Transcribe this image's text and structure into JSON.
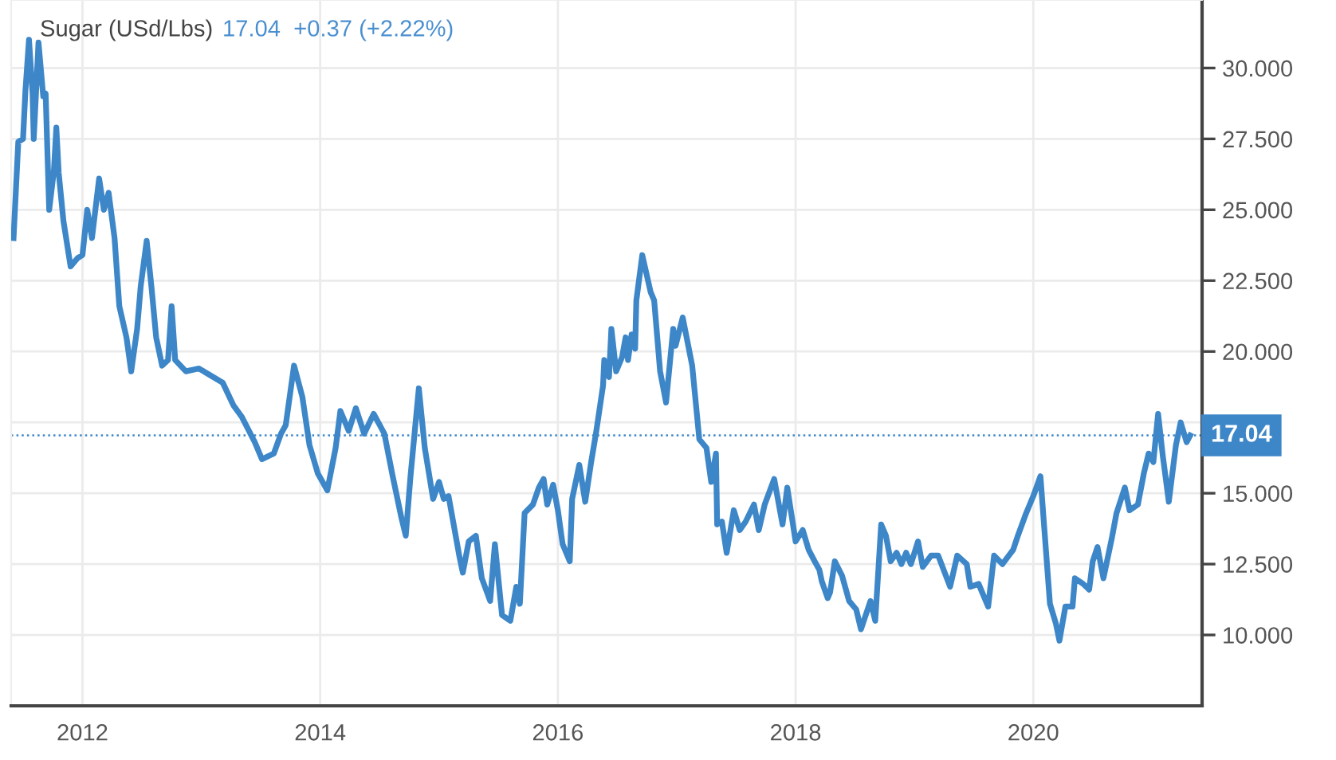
{
  "chart_data": {
    "type": "line",
    "title": "Sugar (USd/Lbs)",
    "subtitle": "17.04  +0.37 (+2.22%)",
    "x": [
      2011.42,
      2011.46,
      2011.5,
      2011.52,
      2011.55,
      2011.58,
      2011.59,
      2011.63,
      2011.67,
      2011.69,
      2011.72,
      2011.76,
      2011.78,
      2011.8,
      2011.84,
      2011.9,
      2011.96,
      2012.0,
      2012.04,
      2012.08,
      2012.14,
      2012.18,
      2012.22,
      2012.27,
      2012.31,
      2012.37,
      2012.41,
      2012.46,
      2012.49,
      2012.54,
      2012.58,
      2012.62,
      2012.67,
      2012.72,
      2012.75,
      2012.78,
      2012.87,
      2012.98,
      2013.18,
      2013.27,
      2013.34,
      2013.45,
      2013.51,
      2013.61,
      2013.67,
      2013.71,
      2013.78,
      2013.85,
      2013.91,
      2013.98,
      2014.06,
      2014.13,
      2014.17,
      2014.24,
      2014.3,
      2014.37,
      2014.45,
      2014.54,
      2014.61,
      2014.68,
      2014.72,
      2014.76,
      2014.83,
      2014.88,
      2014.95,
      2015.0,
      2015.04,
      2015.08,
      2015.17,
      2015.2,
      2015.25,
      2015.31,
      2015.36,
      2015.43,
      2015.47,
      2015.53,
      2015.6,
      2015.65,
      2015.68,
      2015.72,
      2015.79,
      2015.84,
      2015.88,
      2015.91,
      2015.96,
      2016.0,
      2016.04,
      2016.1,
      2016.12,
      2016.18,
      2016.23,
      2016.28,
      2016.32,
      2016.38,
      2016.39,
      2016.43,
      2016.45,
      2016.49,
      2016.54,
      2016.57,
      2016.59,
      2016.62,
      2016.65,
      2016.66,
      2016.71,
      2016.78,
      2016.81,
      2016.86,
      2016.91,
      2016.97,
      2016.99,
      2017.05,
      2017.13,
      2017.19,
      2017.25,
      2017.29,
      2017.33,
      2017.34,
      2017.38,
      2017.42,
      2017.48,
      2017.53,
      2017.58,
      2017.65,
      2017.69,
      2017.74,
      2017.82,
      2017.89,
      2017.93,
      2018.0,
      2018.06,
      2018.11,
      2018.16,
      2018.2,
      2018.22,
      2018.27,
      2018.29,
      2018.33,
      2018.39,
      2018.45,
      2018.51,
      2018.55,
      2018.63,
      2018.67,
      2018.72,
      2018.76,
      2018.8,
      2018.85,
      2018.89,
      2018.93,
      2018.97,
      2019.03,
      2019.07,
      2019.14,
      2019.2,
      2019.3,
      2019.36,
      2019.44,
      2019.47,
      2019.54,
      2019.62,
      2019.67,
      2019.74,
      2019.83,
      2019.87,
      2019.94,
      2020.0,
      2020.06,
      2020.09,
      2020.14,
      2020.19,
      2020.22,
      2020.27,
      2020.33,
      2020.35,
      2020.42,
      2020.47,
      2020.5,
      2020.54,
      2020.59,
      2020.66,
      2020.7,
      2020.77,
      2020.81,
      2020.88,
      2020.93,
      2020.97,
      2021.01,
      2021.05,
      2021.09,
      2021.14,
      2021.2,
      2021.24,
      2021.29,
      2021.32
    ],
    "series": [
      {
        "color": "#3d87c9",
        "values": [
          24.0,
          27.4,
          27.5,
          29.2,
          31.0,
          29.1,
          27.5,
          30.9,
          29.0,
          29.1,
          25.0,
          26.4,
          27.9,
          26.3,
          24.6,
          23.0,
          23.3,
          23.4,
          25.0,
          24.0,
          26.1,
          25.0,
          25.6,
          24.0,
          21.6,
          20.5,
          19.3,
          20.8,
          22.3,
          23.9,
          22.3,
          20.5,
          19.5,
          19.7,
          21.6,
          19.7,
          19.3,
          19.4,
          18.9,
          18.1,
          17.7,
          16.8,
          16.2,
          16.4,
          17.1,
          17.4,
          19.5,
          18.4,
          16.7,
          15.7,
          15.1,
          16.6,
          17.9,
          17.2,
          18.0,
          17.1,
          17.8,
          17.1,
          15.6,
          14.2,
          13.5,
          15.6,
          18.7,
          16.6,
          14.8,
          15.4,
          14.8,
          14.9,
          12.8,
          12.2,
          13.3,
          13.5,
          12.0,
          11.2,
          13.2,
          10.7,
          10.5,
          11.7,
          11.1,
          14.3,
          14.6,
          15.2,
          15.5,
          14.6,
          15.3,
          14.4,
          13.2,
          12.6,
          14.8,
          16.0,
          14.7,
          16.1,
          17.1,
          18.8,
          19.7,
          19.1,
          20.8,
          19.3,
          19.8,
          20.5,
          19.7,
          20.6,
          20.1,
          21.8,
          23.4,
          22.1,
          21.8,
          19.3,
          18.2,
          20.8,
          20.2,
          21.2,
          19.5,
          16.9,
          16.6,
          15.4,
          16.4,
          13.9,
          14.0,
          12.9,
          14.4,
          13.7,
          14.0,
          14.6,
          13.7,
          14.6,
          15.5,
          13.9,
          15.2,
          13.3,
          13.7,
          13.0,
          12.6,
          12.3,
          11.9,
          11.3,
          11.5,
          12.6,
          12.1,
          11.2,
          10.9,
          10.2,
          11.2,
          10.5,
          13.9,
          13.5,
          12.6,
          12.9,
          12.5,
          12.9,
          12.5,
          13.3,
          12.4,
          12.8,
          12.8,
          11.7,
          12.8,
          12.5,
          11.7,
          11.8,
          11.0,
          12.8,
          12.5,
          13.0,
          13.5,
          14.3,
          14.9,
          15.6,
          13.9,
          11.1,
          10.4,
          9.8,
          11.0,
          11.0,
          12.0,
          11.8,
          11.6,
          12.6,
          13.1,
          12.0,
          13.4,
          14.3,
          15.2,
          14.4,
          14.6,
          15.7,
          16.4,
          16.1,
          17.8,
          16.3,
          14.7,
          16.7,
          17.5,
          16.8,
          17.04
        ]
      }
    ],
    "xlim": [
      2011.4,
      2021.42
    ],
    "ylim": [
      7.5,
      32.4
    ],
    "xticks": [
      2012,
      2014,
      2016,
      2018,
      2020
    ],
    "yticks": [
      {
        "value": 10,
        "label": "10.000"
      },
      {
        "value": 12.5,
        "label": "12.500"
      },
      {
        "value": 15,
        "label": "15.000"
      },
      {
        "value": 17.5,
        "label": null
      },
      {
        "value": 20,
        "label": "20.000"
      },
      {
        "value": 22.5,
        "label": "22.500"
      },
      {
        "value": 25,
        "label": "25.000"
      },
      {
        "value": 27.5,
        "label": "27.500"
      },
      {
        "value": 30,
        "label": "30.000"
      }
    ],
    "ref_lines": [
      {
        "axis": "y",
        "value": 17.04,
        "label": "17.04",
        "color": "#3d87c9",
        "line_style": "dotted"
      }
    ],
    "grid": true,
    "marker": "none",
    "line_style": "solid",
    "legend": false
  }
}
